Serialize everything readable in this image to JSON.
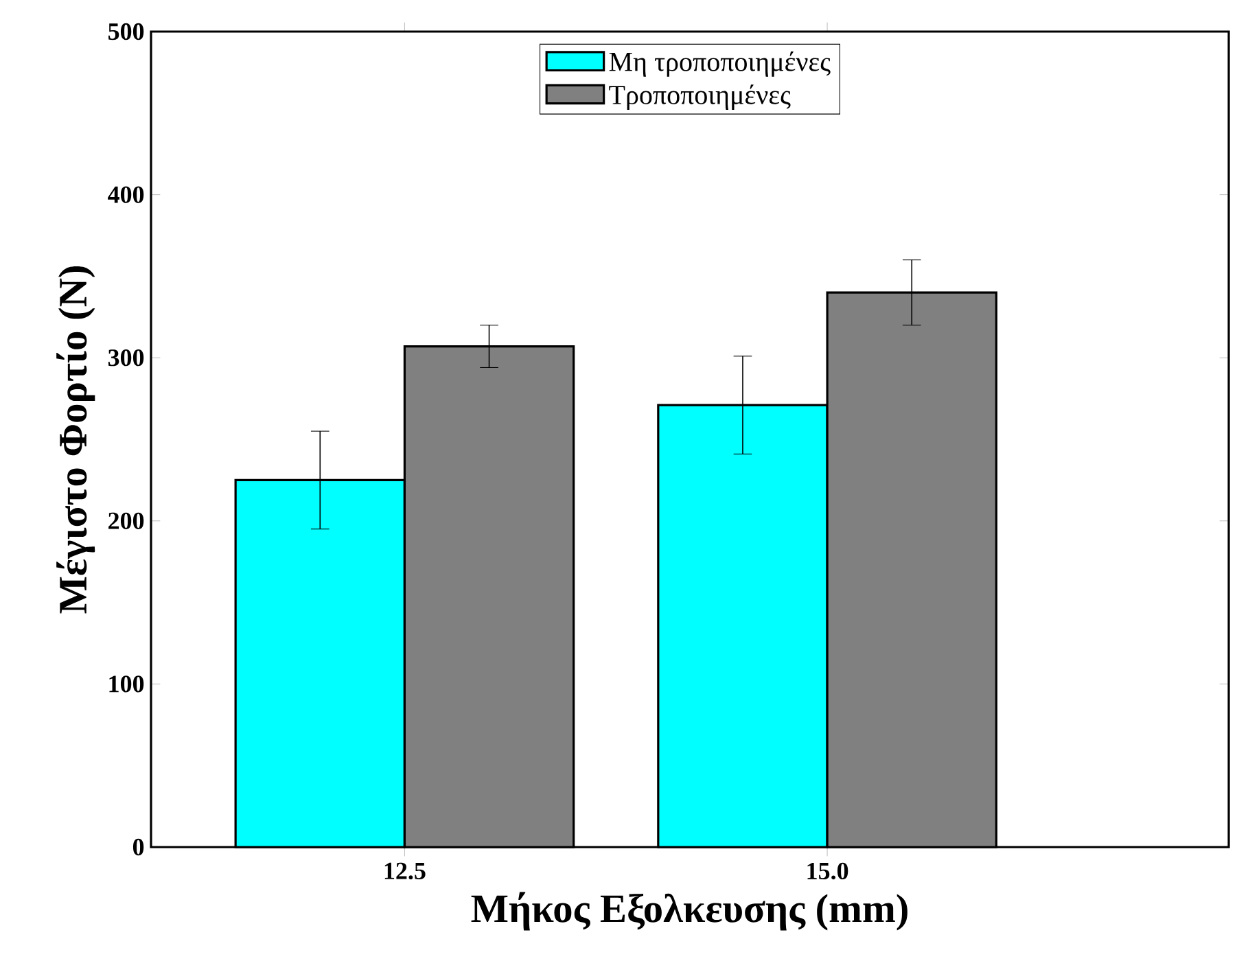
{
  "chart_data": {
    "type": "bar",
    "xlabel": "Μήκος Εξολκευσης  (mm)",
    "ylabel": "Μέγιστο Φορτίο (N)",
    "categories": [
      "12.5",
      "15.0"
    ],
    "series": [
      {
        "name": "Μη τροποποιημένες",
        "color": "#00ffff",
        "values": [
          225,
          271
        ],
        "errors": [
          30,
          30
        ]
      },
      {
        "name": "Τροποποιημένες",
        "color": "#808080",
        "values": [
          307,
          340
        ],
        "errors": [
          13,
          20
        ]
      }
    ],
    "ylim": [
      0,
      500
    ],
    "yticks": [
      0,
      100,
      200,
      300,
      400,
      500
    ],
    "legend": "top",
    "grid": false
  }
}
